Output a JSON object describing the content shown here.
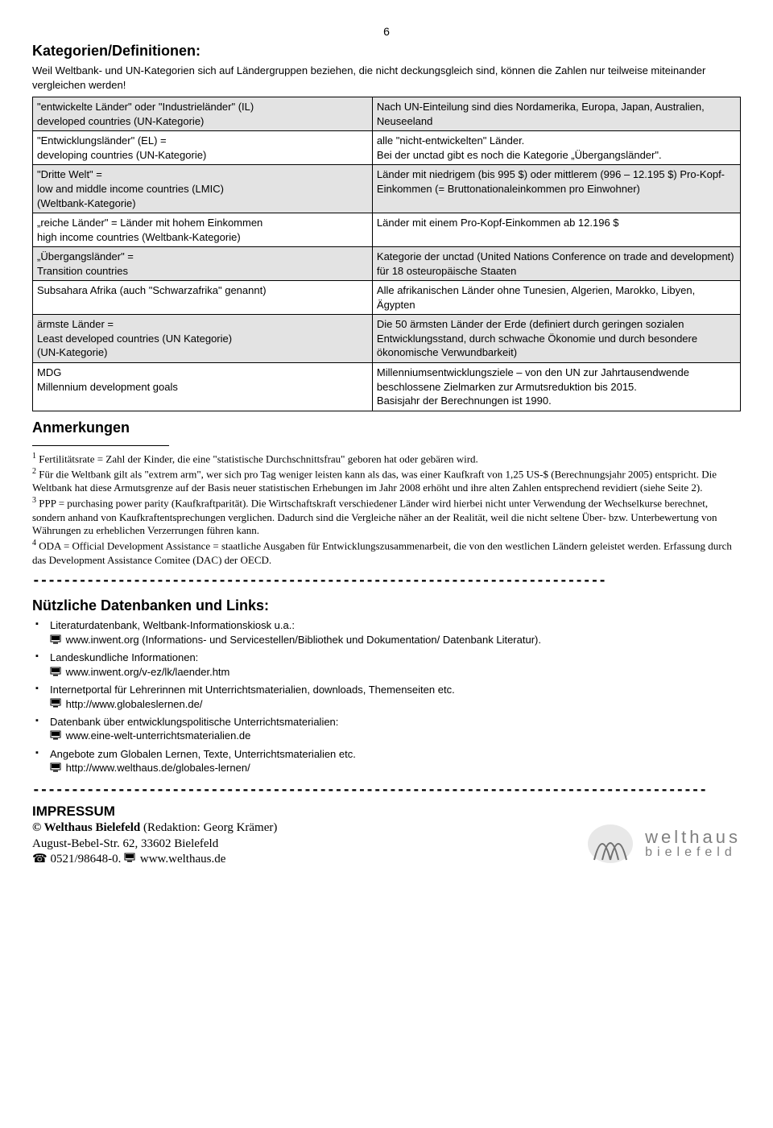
{
  "page_number": "6",
  "heading_categories": "Kategorien/Definitionen:",
  "intro": "Weil Weltbank- und UN-Kategorien sich auf Ländergruppen beziehen, die nicht deckungsgleich sind, können die Zahlen nur teilweise miteinander vergleichen werden!",
  "table": {
    "rows": [
      {
        "grey": true,
        "left": "\"entwickelte Länder\" oder \"Industrieländer\" (IL)\ndeveloped countries (UN-Kategorie)",
        "right": "Nach UN-Einteilung sind dies Nordamerika, Europa, Japan, Australien, Neuseeland"
      },
      {
        "grey": false,
        "left": "\"Entwicklungsländer\" (EL) =\ndeveloping countries (UN-Kategorie)",
        "right": "alle \"nicht-entwickelten\" Länder.\nBei der  unctad gibt es noch die Kategorie „Übergangsländer\"."
      },
      {
        "grey": true,
        "left": "\"Dritte Welt\" =\nlow and middle income countries (LMIC)\n(Weltbank-Kategorie)",
        "right": "Länder mit niedrigem (bis 995 $) oder mittlerem (996 – 12.195 $) Pro-Kopf-Einkommen (= Bruttonationaleinkommen pro Einwohner)"
      },
      {
        "grey": false,
        "left": "„reiche Länder\" = Länder mit hohem Einkommen\nhigh income countries (Weltbank-Kategorie)",
        "right": "Länder mit einem Pro-Kopf-Einkommen ab 12.196 $"
      },
      {
        "grey": true,
        "left": "„Übergangsländer\" =\nTransition countries",
        "right": "Kategorie der unctad (United Nations Conference on trade and development) für 18 osteuropäische Staaten"
      },
      {
        "grey": false,
        "left": "Subsahara Afrika (auch \"Schwarzafrika\" genannt)",
        "right": "Alle afrikanischen Länder ohne Tunesien, Algerien, Marokko, Libyen, Ägypten"
      },
      {
        "grey": true,
        "left": "ärmste Länder =\nLeast developed countries (UN Kategorie)\n(UN-Kategorie)",
        "right": "Die 50 ärmsten Länder der Erde (definiert durch geringen sozialen Entwicklungsstand, durch schwache Ökonomie und durch besondere ökonomische Verwundbarkeit)"
      },
      {
        "grey": false,
        "left": "MDG\nMillennium development goals",
        "right": "Millenniumsentwicklungsziele – von den UN zur Jahrtausendwende beschlossene Zielmarken zur Armutsreduktion bis 2015.\nBasisjahr der Berechnungen ist 1990."
      }
    ]
  },
  "heading_notes": "Anmerkungen",
  "footnotes": [
    {
      "num": "1",
      "text": " Fertilitätsrate = Zahl der Kinder, die eine \"statistische Durchschnittsfrau\" geboren hat oder gebären wird."
    },
    {
      "num": "2",
      "text": " Für die Weltbank gilt als \"extrem arm\", wer sich pro Tag weniger leisten kann als das, was einer Kaufkraft von 1,25 US-$ (Berechnungsjahr 2005) entspricht. Die Weltbank hat diese Armutsgrenze auf der Basis neuer statistischen Erhebungen im Jahr 2008 erhöht und ihre alten Zahlen entsprechend revidiert (siehe Seite 2)."
    },
    {
      "num": "3",
      "text": " PPP = purchasing power parity (Kaufkraftparität). Die Wirtschaftskraft verschiedener Länder wird hierbei nicht unter Verwendung der Wechselkurse berechnet, sondern anhand von Kaufkraftentsprechungen verglichen. Dadurch sind die Vergleiche näher an der Realität, weil die nicht seltene Über- bzw. Unterbewertung von Währungen zu erheblichen Verzerrungen führen kann."
    },
    {
      "num": "4",
      "text": " ODA = Official Development Assistance = staatliche Ausgaben für Entwicklungszusammenarbeit, die von den westlichen Ländern geleistet werden. Erfassung durch das Development Assistance Comitee (DAC) der OECD."
    }
  ],
  "hr1": "--------------------------------------------------------------------------",
  "heading_links": "Nützliche Datenbanken und Links:",
  "links": [
    {
      "label": "Literaturdatenbank, Weltbank-Informationskiosk u.a.:",
      "url": "www.inwent.org (Informations- und Servicestellen/Bibliothek und Dokumentation/ Datenbank Literatur)."
    },
    {
      "label": "Landeskundliche Informationen:",
      "url": "www.inwent.org/v-ez/lk/laender.htm"
    },
    {
      "label": "Internetportal für Lehrerinnen mit Unterrichtsmaterialien, downloads, Themenseiten etc.",
      "url": "http://www.globaleslernen.de/"
    },
    {
      "label": "Datenbank über entwicklungspolitische Unterrichtsmaterialien:",
      "url": "www.eine-welt-unterrichtsmaterialien.de"
    },
    {
      "label": "Angebote zum Globalen Lernen, Texte, Unterrichtsmaterialien etc.",
      "url": "http://www.welthaus.de/globales-lernen/"
    }
  ],
  "hr2": "---------------------------------------------------------------------------------------",
  "impressum": {
    "title": "IMPRESSUM",
    "org": "© Welthaus Bielefeld",
    "editor": " (Redaktion: Georg Krämer)",
    "address": "August-Bebel-Str. 62, 33602 Bielefeld",
    "phone_icon": "☎",
    "phone": " 0521/98648-0. ",
    "web": " www.welthaus.de"
  },
  "logo": {
    "top": "welthaus",
    "bottom": "bielefeld",
    "colors": {
      "grey": "#808080",
      "stroke": "#a0a0a0"
    }
  }
}
